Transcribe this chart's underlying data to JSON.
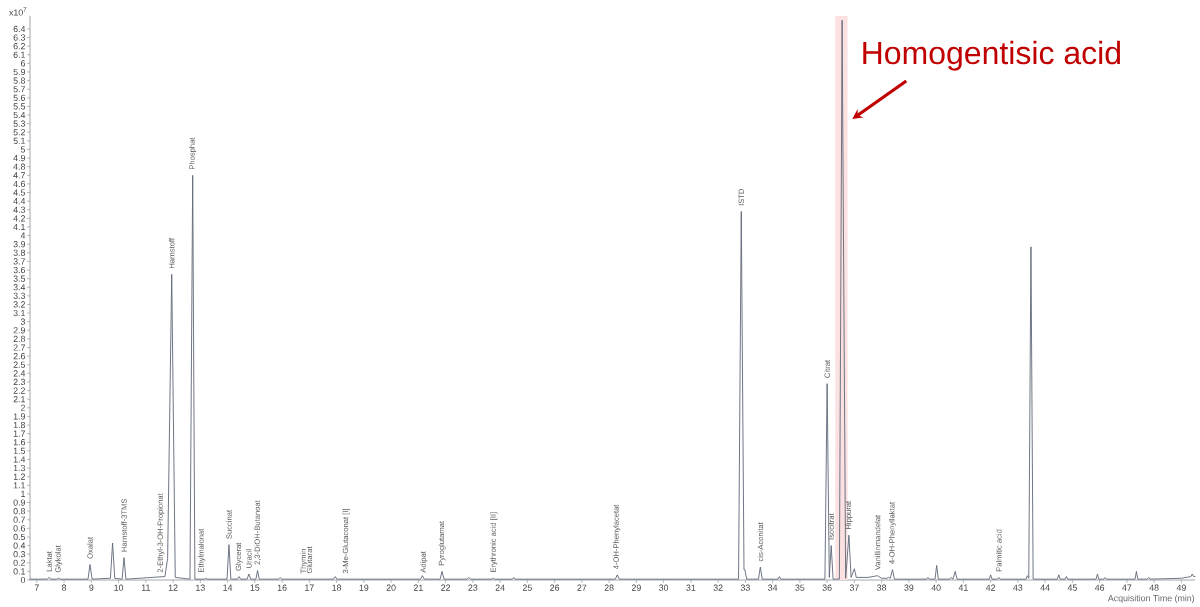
{
  "chart_data": {
    "type": "line",
    "xlabel": "Acquisition Time (min)",
    "color": "#5f6877",
    "xlim": [
      6.75,
      49.5
    ],
    "ylim": [
      0,
      6.55
    ],
    "xticks": [
      7,
      8,
      9,
      10,
      11,
      12,
      13,
      14,
      15,
      16,
      17,
      18,
      19,
      20,
      21,
      22,
      23,
      24,
      25,
      26,
      27,
      28,
      29,
      30,
      31,
      32,
      33,
      34,
      35,
      36,
      37,
      38,
      39,
      40,
      41,
      42,
      43,
      44,
      45,
      46,
      47,
      48,
      49
    ],
    "yticks": [
      0,
      0.1,
      0.2,
      0.3,
      0.4,
      0.5,
      0.6,
      0.7,
      0.8,
      0.9,
      1,
      1.1,
      1.2,
      1.3,
      1.4,
      1.5,
      1.6,
      1.7,
      1.8,
      1.9,
      2,
      2.1,
      2.2,
      2.3,
      2.4,
      2.5,
      2.6,
      2.7,
      2.8,
      2.9,
      3,
      3.1,
      3.2,
      3.3,
      3.4,
      3.5,
      3.6,
      3.7,
      3.8,
      3.9,
      4,
      4.1,
      4.2,
      4.3,
      4.4,
      4.5,
      4.6,
      4.7,
      4.8,
      4.9,
      5,
      5.1,
      5.2,
      5.3,
      5.4,
      5.5,
      5.6,
      5.7,
      5.8,
      5.9,
      6,
      6.1,
      6.2,
      6.3,
      6.4
    ],
    "bands": [
      {
        "axis": "x",
        "from": 36.3,
        "to": 36.75,
        "color": "#fbe1e1"
      }
    ],
    "x": [
      6.75,
      7.38,
      7.45,
      7.52,
      7.73,
      7.8,
      7.87,
      8.88,
      8.95,
      9.03,
      9.7,
      9.78,
      9.86,
      10.13,
      10.2,
      10.27,
      11.7,
      11.8,
      11.95,
      12.08,
      12.62,
      12.72,
      12.8,
      13.15,
      13.2,
      13.25,
      13.98,
      14.05,
      14.12,
      14.36,
      14.42,
      14.48,
      14.72,
      14.78,
      14.85,
      15.04,
      15.1,
      15.16,
      15.87,
      15.93,
      15.99,
      17.89,
      17.95,
      18.01,
      21.08,
      21.15,
      21.22,
      21.8,
      21.87,
      21.94,
      22.79,
      22.85,
      22.91,
      23.7,
      23.75,
      23.8,
      24.45,
      24.5,
      24.55,
      28.23,
      28.3,
      28.37,
      32.75,
      32.85,
      32.95,
      32.98,
      33.05,
      33.48,
      33.55,
      33.62,
      34.2,
      34.25,
      34.3,
      35.92,
      36.0,
      36.08,
      36.15,
      36.22,
      36.45,
      36.55,
      36.68,
      36.8,
      36.88,
      37.0,
      37.07,
      37.5,
      37.85,
      38.0,
      38.2,
      38.25,
      38.32,
      38.4,
      38.47,
      39.65,
      39.7,
      39.75,
      39.96,
      40.02,
      40.08,
      40.5,
      40.55,
      40.62,
      40.7,
      40.77,
      41.95,
      42.0,
      42.05,
      42.25,
      42.3,
      42.35,
      43.3,
      43.35,
      43.4,
      43.48,
      43.56,
      44.45,
      44.5,
      44.55,
      44.73,
      44.78,
      44.83,
      45.87,
      45.92,
      45.97,
      46.15,
      46.2,
      46.25,
      47.3,
      47.35,
      47.4,
      47.75,
      47.8,
      47.85,
      49.0,
      49.35,
      49.4,
      49.45,
      49.5
    ],
    "values": [
      0.01,
      0.01,
      0.03,
      0.01,
      0.01,
      0.02,
      0.01,
      0.01,
      0.18,
      0.01,
      0.02,
      0.43,
      0.02,
      0.01,
      0.26,
      0.01,
      0.04,
      0.25,
      3.55,
      0.03,
      0.01,
      4.7,
      0.01,
      0.01,
      0.02,
      0.01,
      0.01,
      0.41,
      0.01,
      0.01,
      0.04,
      0.01,
      0.01,
      0.07,
      0.01,
      0.01,
      0.11,
      0.01,
      0.01,
      0.03,
      0.01,
      0.01,
      0.04,
      0.01,
      0.01,
      0.05,
      0.01,
      0.01,
      0.1,
      0.01,
      0.01,
      0.03,
      0.01,
      0.01,
      0.02,
      0.01,
      0.01,
      0.03,
      0.01,
      0.01,
      0.06,
      0.01,
      0.01,
      4.28,
      0.12,
      0.12,
      0.01,
      0.01,
      0.15,
      0.01,
      0.01,
      0.04,
      0.01,
      0.01,
      2.28,
      0.03,
      0.4,
      0.01,
      0.01,
      6.5,
      0.02,
      0.52,
      0.03,
      0.13,
      0.03,
      0.03,
      0.05,
      0.02,
      0.02,
      0.03,
      0.02,
      0.12,
      0.01,
      0.01,
      0.03,
      0.01,
      0.01,
      0.17,
      0.01,
      0.01,
      0.03,
      0.01,
      0.1,
      0.01,
      0.01,
      0.06,
      0.01,
      0.01,
      0.03,
      0.01,
      0.01,
      0.05,
      0.02,
      3.87,
      0.01,
      0.01,
      0.06,
      0.01,
      0.01,
      0.04,
      0.01,
      0.01,
      0.07,
      0.01,
      0.01,
      0.03,
      0.01,
      0.01,
      0.1,
      0.01,
      0.01,
      0.03,
      0.01,
      0.02,
      0.04,
      0.07,
      0.04,
      0.04
    ],
    "annotations": [
      {
        "text": "Homogentisic acid",
        "x": 36.85,
        "y": 5.33
      },
      "x10$^{7}$",
      {
        "text": "Laktat",
        "x": 7.45,
        "y": 0.03
      },
      {
        "text": "Glykolat",
        "x": 7.8,
        "y": 0.02
      },
      {
        "text": "Oxalat",
        "x": 8.95,
        "y": 0.18
      },
      {
        "text": "Harnstoff-3TMS",
        "x": 10.2,
        "y": 0.26
      },
      {
        "text": "2-Ethyl-3-OH-Propionat",
        "x": 11.55,
        "y": 0.02
      },
      {
        "text": "Harnstoff",
        "x": 11.95,
        "y": 3.55
      },
      {
        "text": "Phosphat",
        "x": 12.72,
        "y": 4.7
      },
      {
        "text": "Ethylmalonat",
        "x": 13.05,
        "y": 0.02
      },
      {
        "text": "Succinat",
        "x": 14.05,
        "y": 0.41
      },
      {
        "text": "Glycerat",
        "x": 14.42,
        "y": 0.04
      },
      {
        "text": "Uracil",
        "x": 14.78,
        "y": 0.07
      },
      {
        "text": "2,3-DiOH-Butanoat",
        "x": 15.1,
        "y": 0.11
      },
      {
        "text": "Thymin",
        "x": 16.8,
        "y": 0.01
      },
      {
        "text": "Glutarat",
        "x": 17.0,
        "y": 0.01
      },
      {
        "text": "3-Me-Glutaconat [I]",
        "x": 18.35,
        "y": 0.01
      },
      {
        "text": "Adipat",
        "x": 21.2,
        "y": 0.02
      },
      {
        "text": "Pyroglutamat",
        "x": 21.87,
        "y": 0.1
      },
      {
        "text": "Erythronic acid [II]",
        "x": 23.77,
        "y": 0.02
      },
      {
        "text": "4-OH-Phenylacetat",
        "x": 28.28,
        "y": 0.06
      },
      {
        "text": "ISTD",
        "x": 32.85,
        "y": 4.28
      },
      {
        "text": "cis-Aconitat",
        "x": 33.55,
        "y": 0.15
      },
      {
        "text": "Citrat",
        "x": 36.0,
        "y": 2.28
      },
      {
        "text": "Isocitrat",
        "x": 36.15,
        "y": 0.4
      },
      {
        "text": "Hippurat",
        "x": 36.8,
        "y": 0.52
      },
      {
        "text": "Vanillinmandelat",
        "x": 37.85,
        "y": 0.05
      },
      {
        "text": "4-OH-Phenyllaktat",
        "x": 38.4,
        "y": 0.12
      },
      {
        "text": "Palmitic acid",
        "x": 42.3,
        "y": 0.03
      }
    ]
  }
}
